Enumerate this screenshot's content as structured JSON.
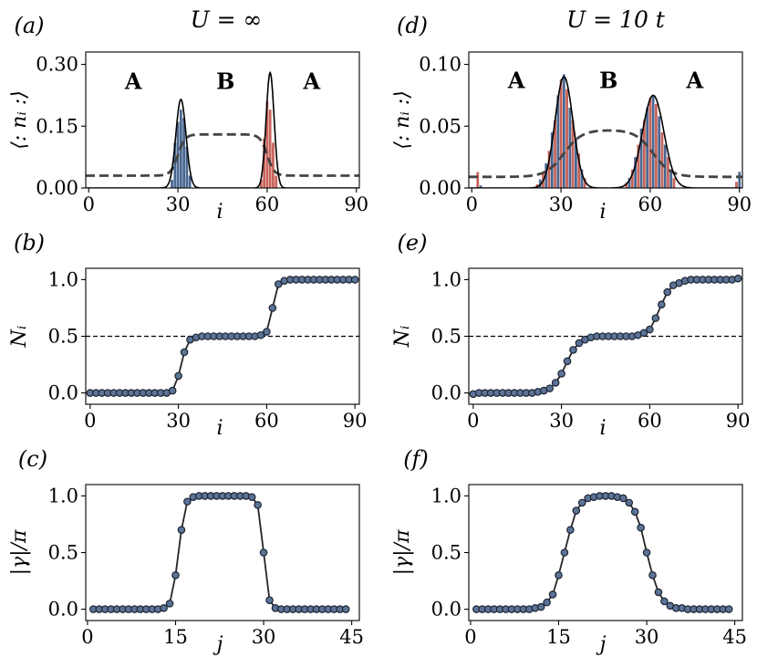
{
  "columns": [
    {
      "title": "U = ∞"
    },
    {
      "title": "U = 10 t"
    }
  ],
  "colors": {
    "blue_bar": "#4a6791",
    "red_bar": "#c8645a",
    "curve": "#000000",
    "dashed": "#444444",
    "marker_face": "#5b7396",
    "marker_edge": "#1d2433",
    "line": "#262626"
  },
  "chart_data": [
    {
      "id": "a",
      "panel_label": "(a)",
      "type": "bar",
      "xlabel": "i",
      "ylabel": "⟨: nᵢ :⟩",
      "xlim": [
        -1,
        91
      ],
      "ylim": [
        0,
        0.33
      ],
      "xticks": [
        0,
        30,
        60,
        90
      ],
      "yticks": [
        0.0,
        0.15,
        0.3
      ],
      "ytick_labels": [
        "0.00",
        "0.15",
        "0.30"
      ],
      "region_labels": [
        {
          "text": "A",
          "x": 15,
          "y": 0.24
        },
        {
          "text": "B",
          "x": 46,
          "y": 0.24
        },
        {
          "text": "A",
          "x": 75,
          "y": 0.24
        }
      ],
      "bars": [
        {
          "i": 28,
          "value": 0.02,
          "color": "blue"
        },
        {
          "i": 29,
          "value": 0.11,
          "color": "blue"
        },
        {
          "i": 30,
          "value": 0.16,
          "color": "blue"
        },
        {
          "i": 31,
          "value": 0.19,
          "color": "blue"
        },
        {
          "i": 32,
          "value": 0.17,
          "color": "blue"
        },
        {
          "i": 33,
          "value": 0.1,
          "color": "blue"
        },
        {
          "i": 34,
          "value": 0.03,
          "color": "blue"
        },
        {
          "i": 58,
          "value": 0.02,
          "color": "red"
        },
        {
          "i": 59,
          "value": 0.12,
          "color": "red"
        },
        {
          "i": 60,
          "value": 0.21,
          "color": "red"
        },
        {
          "i": 61,
          "value": 0.19,
          "color": "red"
        },
        {
          "i": 62,
          "value": 0.11,
          "color": "red"
        },
        {
          "i": 63,
          "value": 0.03,
          "color": "red"
        }
      ],
      "curve": {
        "type": "gaussians",
        "peaks": [
          {
            "center": 31,
            "amp": 0.215,
            "width": 1.7
          },
          {
            "center": 61,
            "amp": 0.28,
            "width": 1.35
          }
        ]
      },
      "dashed": {
        "type": "plateau",
        "base": 0.03,
        "high": 0.13,
        "rise_center": 30,
        "fall_center": 60,
        "scale": 1.2
      }
    },
    {
      "id": "d",
      "panel_label": "(d)",
      "type": "bar",
      "xlabel": "i",
      "ylabel": "⟨: nᵢ :⟩",
      "xlim": [
        -1,
        91
      ],
      "ylim": [
        0,
        0.11
      ],
      "xticks": [
        0,
        30,
        60,
        90
      ],
      "yticks": [
        0.0,
        0.05,
        0.1
      ],
      "ytick_labels": [
        "0.00",
        "0.05",
        "0.10"
      ],
      "region_labels": [
        {
          "text": "A",
          "x": 15,
          "y": 0.081
        },
        {
          "text": "B",
          "x": 46,
          "y": 0.081
        },
        {
          "text": "A",
          "x": 75,
          "y": 0.081
        }
      ],
      "bars": [
        {
          "i": 2,
          "value": 0.013,
          "color": "red"
        },
        {
          "i": 3,
          "value": 0.002,
          "color": "blue"
        },
        {
          "i": 22,
          "value": 0.003,
          "color": "red"
        },
        {
          "i": 23,
          "value": 0.007,
          "color": "blue"
        },
        {
          "i": 24,
          "value": 0.012,
          "color": "red"
        },
        {
          "i": 25,
          "value": 0.02,
          "color": "blue"
        },
        {
          "i": 26,
          "value": 0.03,
          "color": "red"
        },
        {
          "i": 27,
          "value": 0.045,
          "color": "blue"
        },
        {
          "i": 28,
          "value": 0.055,
          "color": "red"
        },
        {
          "i": 29,
          "value": 0.075,
          "color": "blue"
        },
        {
          "i": 30,
          "value": 0.088,
          "color": "red"
        },
        {
          "i": 31,
          "value": 0.092,
          "color": "blue"
        },
        {
          "i": 32,
          "value": 0.08,
          "color": "red"
        },
        {
          "i": 33,
          "value": 0.065,
          "color": "blue"
        },
        {
          "i": 34,
          "value": 0.055,
          "color": "red"
        },
        {
          "i": 35,
          "value": 0.04,
          "color": "blue"
        },
        {
          "i": 36,
          "value": 0.028,
          "color": "red"
        },
        {
          "i": 37,
          "value": 0.015,
          "color": "blue"
        },
        {
          "i": 38,
          "value": 0.008,
          "color": "red"
        },
        {
          "i": 52,
          "value": 0.004,
          "color": "red"
        },
        {
          "i": 53,
          "value": 0.008,
          "color": "blue"
        },
        {
          "i": 54,
          "value": 0.015,
          "color": "red"
        },
        {
          "i": 55,
          "value": 0.025,
          "color": "blue"
        },
        {
          "i": 56,
          "value": 0.035,
          "color": "red"
        },
        {
          "i": 57,
          "value": 0.048,
          "color": "blue"
        },
        {
          "i": 58,
          "value": 0.055,
          "color": "red"
        },
        {
          "i": 59,
          "value": 0.065,
          "color": "blue"
        },
        {
          "i": 60,
          "value": 0.073,
          "color": "red"
        },
        {
          "i": 61,
          "value": 0.075,
          "color": "blue"
        },
        {
          "i": 62,
          "value": 0.068,
          "color": "red"
        },
        {
          "i": 63,
          "value": 0.058,
          "color": "blue"
        },
        {
          "i": 64,
          "value": 0.045,
          "color": "red"
        },
        {
          "i": 65,
          "value": 0.035,
          "color": "blue"
        },
        {
          "i": 66,
          "value": 0.025,
          "color": "red"
        },
        {
          "i": 67,
          "value": 0.015,
          "color": "blue"
        },
        {
          "i": 68,
          "value": 0.008,
          "color": "red"
        },
        {
          "i": 89,
          "value": 0.005,
          "color": "red"
        },
        {
          "i": 90,
          "value": 0.013,
          "color": "blue"
        }
      ],
      "curve": {
        "type": "gaussians",
        "peaks": [
          {
            "center": 31,
            "amp": 0.09,
            "width": 3.0
          },
          {
            "center": 61,
            "amp": 0.075,
            "width": 3.6
          }
        ]
      },
      "dashed": {
        "type": "plateau",
        "base": 0.009,
        "high": 0.047,
        "rise_center": 31,
        "fall_center": 61,
        "scale": 3.0
      }
    },
    {
      "id": "b",
      "panel_label": "(b)",
      "type": "line",
      "xlabel": "i",
      "ylabel": "Nᵢ",
      "xlim": [
        -1.5,
        91.5
      ],
      "ylim": [
        -0.1,
        1.1
      ],
      "xticks": [
        0,
        30,
        60,
        90
      ],
      "yticks": [
        0.0,
        0.5,
        1.0
      ],
      "ytick_labels": [
        "0.0",
        "0.5",
        "1.0"
      ],
      "hline": 0.5,
      "x": [
        0,
        2,
        4,
        6,
        8,
        10,
        12,
        14,
        16,
        18,
        20,
        22,
        24,
        26,
        28,
        30,
        32,
        34,
        36,
        38,
        40,
        42,
        44,
        46,
        48,
        50,
        52,
        54,
        56,
        58,
        60,
        62,
        64,
        66,
        68,
        70,
        72,
        74,
        76,
        78,
        80,
        82,
        84,
        86,
        88,
        90
      ],
      "y": [
        0,
        0,
        0,
        0,
        0,
        0,
        0,
        0,
        0,
        0,
        0,
        0,
        0,
        0,
        0.02,
        0.15,
        0.36,
        0.47,
        0.49,
        0.5,
        0.5,
        0.5,
        0.5,
        0.5,
        0.5,
        0.5,
        0.5,
        0.5,
        0.5,
        0.51,
        0.54,
        0.75,
        0.96,
        0.99,
        1.0,
        1.0,
        1.0,
        1.0,
        1.0,
        1.0,
        1.0,
        1.0,
        1.0,
        1.0,
        1.0,
        1.0
      ]
    },
    {
      "id": "e",
      "panel_label": "(e)",
      "type": "line",
      "xlabel": "i",
      "ylabel": "Nᵢ",
      "xlim": [
        -1.5,
        91.5
      ],
      "ylim": [
        -0.1,
        1.1
      ],
      "xticks": [
        0,
        30,
        60,
        90
      ],
      "yticks": [
        0.0,
        0.5,
        1.0
      ],
      "ytick_labels": [
        "0.0",
        "0.5",
        "1.0"
      ],
      "hline": 0.5,
      "x": [
        0,
        2,
        4,
        6,
        8,
        10,
        12,
        14,
        16,
        18,
        20,
        22,
        24,
        26,
        28,
        30,
        32,
        34,
        36,
        38,
        40,
        42,
        44,
        46,
        48,
        50,
        52,
        54,
        56,
        58,
        60,
        62,
        64,
        66,
        68,
        70,
        72,
        74,
        76,
        78,
        80,
        82,
        84,
        86,
        88,
        90
      ],
      "y": [
        -0.01,
        0.0,
        0.0,
        0.0,
        0.0,
        0.0,
        0.0,
        0.0,
        0.0,
        0.0,
        0.0,
        0.01,
        0.02,
        0.04,
        0.09,
        0.17,
        0.28,
        0.38,
        0.44,
        0.47,
        0.49,
        0.5,
        0.5,
        0.5,
        0.5,
        0.5,
        0.5,
        0.5,
        0.51,
        0.53,
        0.56,
        0.66,
        0.78,
        0.89,
        0.95,
        0.97,
        0.99,
        1.0,
        1.0,
        1.0,
        1.0,
        1.0,
        1.0,
        1.0,
        1.0,
        1.01
      ]
    },
    {
      "id": "c",
      "panel_label": "(c)",
      "type": "line",
      "xlabel": "j",
      "ylabel": "|γ|/π",
      "xlim": [
        -0.3,
        46.3
      ],
      "ylim": [
        -0.1,
        1.1
      ],
      "xticks": [
        0,
        15,
        30,
        45
      ],
      "yticks": [
        0.0,
        0.5,
        1.0
      ],
      "ytick_labels": [
        "0.0",
        "0.5",
        "1.0"
      ],
      "x": [
        1,
        2,
        3,
        4,
        5,
        6,
        7,
        8,
        9,
        10,
        11,
        12,
        13,
        14,
        15,
        16,
        17,
        18,
        19,
        20,
        21,
        22,
        23,
        24,
        25,
        26,
        27,
        28,
        29,
        30,
        31,
        32,
        33,
        34,
        35,
        36,
        37,
        38,
        39,
        40,
        41,
        42,
        43,
        44
      ],
      "y": [
        0,
        0,
        0,
        0,
        0,
        0,
        0,
        0,
        0,
        0,
        0,
        0,
        0.01,
        0.05,
        0.3,
        0.7,
        0.95,
        0.99,
        1.0,
        1.0,
        1.0,
        1.0,
        1.0,
        1.0,
        1.0,
        1.0,
        1.0,
        0.99,
        0.92,
        0.5,
        0.08,
        0.01,
        0,
        0,
        0,
        0,
        0,
        0,
        0,
        0,
        0,
        0,
        0,
        0
      ]
    },
    {
      "id": "f",
      "panel_label": "(f)",
      "type": "line",
      "xlabel": "j",
      "ylabel": "|γ|/π",
      "xlim": [
        -0.3,
        46.3
      ],
      "ylim": [
        -0.1,
        1.1
      ],
      "xticks": [
        0,
        15,
        30,
        45
      ],
      "yticks": [
        0.0,
        0.5,
        1.0
      ],
      "ytick_labels": [
        "0.0",
        "0.5",
        "1.0"
      ],
      "x": [
        1,
        2,
        3,
        4,
        5,
        6,
        7,
        8,
        9,
        10,
        11,
        12,
        13,
        14,
        15,
        16,
        17,
        18,
        19,
        20,
        21,
        22,
        23,
        24,
        25,
        26,
        27,
        28,
        29,
        30,
        31,
        32,
        33,
        34,
        35,
        36,
        37,
        38,
        39,
        40,
        41,
        42,
        43,
        44
      ],
      "y": [
        0,
        0,
        0,
        0,
        0,
        0,
        0,
        0,
        0,
        0,
        0.01,
        0.02,
        0.06,
        0.13,
        0.3,
        0.5,
        0.7,
        0.87,
        0.94,
        0.98,
        0.99,
        1.0,
        1.0,
        1.0,
        0.99,
        0.98,
        0.94,
        0.86,
        0.72,
        0.5,
        0.3,
        0.15,
        0.07,
        0.03,
        0.01,
        0.01,
        0,
        0,
        0,
        0,
        0,
        0,
        0,
        0
      ]
    }
  ]
}
